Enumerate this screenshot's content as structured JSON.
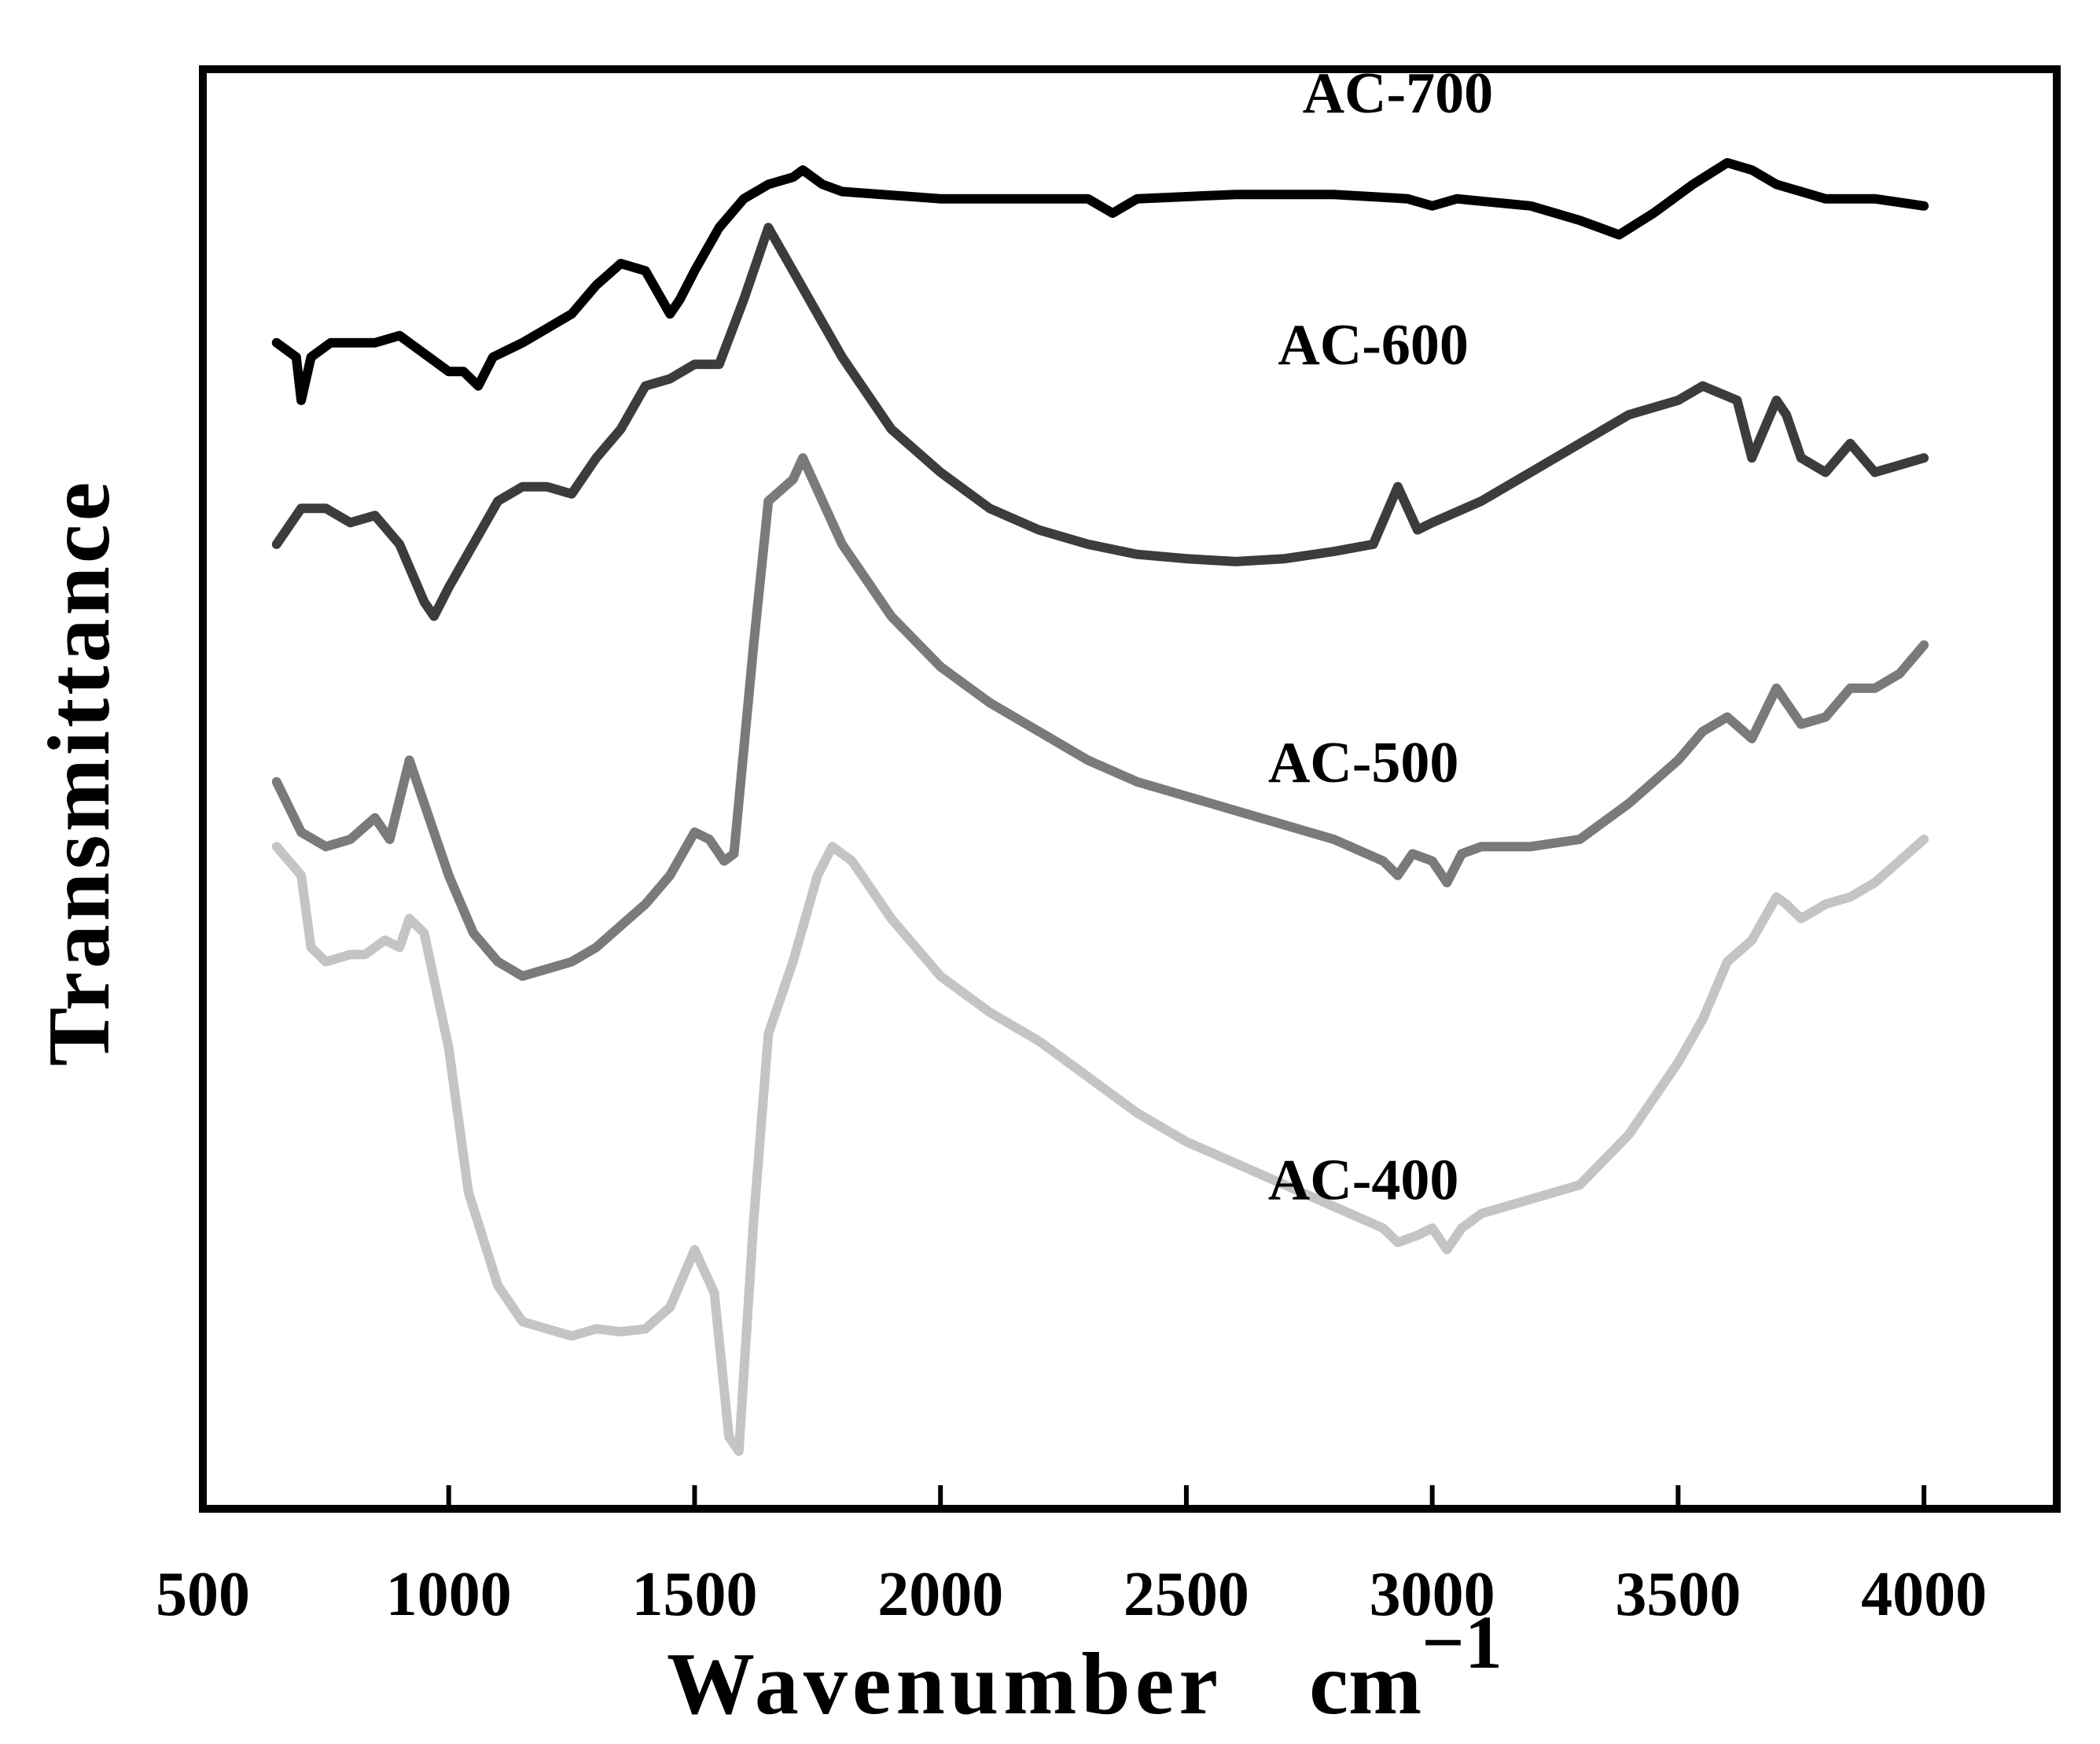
{
  "chart_data": {
    "type": "line",
    "title": "",
    "xlabel": "Wavenumber",
    "xlabel_unit": "cm",
    "xlabel_unit_exponent": "−1",
    "ylabel": "Transmittance",
    "xlim": [
      500,
      4270
    ],
    "ylim": [
      0,
      100
    ],
    "grid": false,
    "legend": "inline labels next to curves",
    "x_ticks": [
      {
        "value": 500,
        "label": "500"
      },
      {
        "value": 1000,
        "label": "1000"
      },
      {
        "value": 1500,
        "label": "1500"
      },
      {
        "value": 2000,
        "label": "2000"
      },
      {
        "value": 2500,
        "label": "2500"
      },
      {
        "value": 3000,
        "label": "3000"
      },
      {
        "value": 3500,
        "label": "3500"
      },
      {
        "value": 4000,
        "label": "4000"
      }
    ],
    "series": [
      {
        "name": "AC-700",
        "label": "AC-700",
        "color": "#000000",
        "label_pos": {
          "x": 2930,
          "y": 97
        },
        "points": [
          [
            650,
            81
          ],
          [
            690,
            80
          ],
          [
            700,
            77
          ],
          [
            720,
            80
          ],
          [
            760,
            81
          ],
          [
            850,
            81
          ],
          [
            900,
            81.5
          ],
          [
            960,
            80
          ],
          [
            1000,
            79
          ],
          [
            1030,
            79
          ],
          [
            1060,
            78
          ],
          [
            1090,
            80
          ],
          [
            1150,
            81
          ],
          [
            1200,
            82
          ],
          [
            1250,
            83
          ],
          [
            1300,
            85
          ],
          [
            1350,
            86.5
          ],
          [
            1400,
            86
          ],
          [
            1450,
            83
          ],
          [
            1470,
            84
          ],
          [
            1500,
            86
          ],
          [
            1550,
            89
          ],
          [
            1600,
            91
          ],
          [
            1650,
            92
          ],
          [
            1700,
            92.5
          ],
          [
            1720,
            93
          ],
          [
            1760,
            92
          ],
          [
            1800,
            91.5
          ],
          [
            2000,
            91
          ],
          [
            2200,
            91
          ],
          [
            2300,
            91
          ],
          [
            2350,
            90
          ],
          [
            2400,
            91
          ],
          [
            2600,
            91.3
          ],
          [
            2800,
            91.3
          ],
          [
            2950,
            91
          ],
          [
            3000,
            90.5
          ],
          [
            3050,
            91
          ],
          [
            3200,
            90.5
          ],
          [
            3300,
            89.5
          ],
          [
            3380,
            88.5
          ],
          [
            3450,
            90
          ],
          [
            3530,
            92
          ],
          [
            3600,
            93.5
          ],
          [
            3650,
            93
          ],
          [
            3700,
            92
          ],
          [
            3800,
            91
          ],
          [
            3900,
            91
          ],
          [
            4000,
            90.5
          ]
        ]
      },
      {
        "name": "AC-600",
        "label": "AC-600",
        "color": "#3c3c3c",
        "label_pos": {
          "x": 2880,
          "y": 79.5
        },
        "points": [
          [
            650,
            67
          ],
          [
            700,
            69.5
          ],
          [
            750,
            69.5
          ],
          [
            800,
            68.5
          ],
          [
            850,
            69
          ],
          [
            900,
            67
          ],
          [
            950,
            63
          ],
          [
            970,
            62
          ],
          [
            1000,
            64
          ],
          [
            1050,
            67
          ],
          [
            1100,
            70
          ],
          [
            1150,
            71
          ],
          [
            1200,
            71
          ],
          [
            1250,
            70.5
          ],
          [
            1300,
            73
          ],
          [
            1350,
            75
          ],
          [
            1400,
            78
          ],
          [
            1450,
            78.5
          ],
          [
            1500,
            79.5
          ],
          [
            1550,
            79.5
          ],
          [
            1600,
            84
          ],
          [
            1650,
            89
          ],
          [
            1700,
            86
          ],
          [
            1750,
            83
          ],
          [
            1800,
            80
          ],
          [
            1900,
            75
          ],
          [
            2000,
            72
          ],
          [
            2100,
            69.5
          ],
          [
            2200,
            68
          ],
          [
            2300,
            67
          ],
          [
            2400,
            66.3
          ],
          [
            2500,
            66
          ],
          [
            2600,
            65.8
          ],
          [
            2700,
            66
          ],
          [
            2800,
            66.5
          ],
          [
            2880,
            67
          ],
          [
            2930,
            71
          ],
          [
            2970,
            68
          ],
          [
            3000,
            68.5
          ],
          [
            3100,
            70
          ],
          [
            3200,
            72
          ],
          [
            3300,
            74
          ],
          [
            3400,
            76
          ],
          [
            3500,
            77
          ],
          [
            3550,
            78
          ],
          [
            3620,
            77
          ],
          [
            3650,
            73
          ],
          [
            3700,
            77
          ],
          [
            3720,
            76
          ],
          [
            3750,
            73
          ],
          [
            3800,
            72
          ],
          [
            3850,
            74
          ],
          [
            3900,
            72
          ],
          [
            3950,
            72.5
          ],
          [
            4000,
            73
          ]
        ]
      },
      {
        "name": "AC-500",
        "label": "AC-500",
        "color": "#7a7a7a",
        "label_pos": {
          "x": 2860,
          "y": 50.5
        },
        "points": [
          [
            650,
            50.5
          ],
          [
            700,
            47
          ],
          [
            750,
            46
          ],
          [
            800,
            46.5
          ],
          [
            850,
            48
          ],
          [
            880,
            46.5
          ],
          [
            920,
            52
          ],
          [
            950,
            49
          ],
          [
            1000,
            44
          ],
          [
            1050,
            40
          ],
          [
            1100,
            38
          ],
          [
            1150,
            37
          ],
          [
            1200,
            37.5
          ],
          [
            1250,
            38
          ],
          [
            1300,
            39
          ],
          [
            1350,
            40.5
          ],
          [
            1400,
            42
          ],
          [
            1450,
            44
          ],
          [
            1500,
            47
          ],
          [
            1530,
            46.5
          ],
          [
            1560,
            45
          ],
          [
            1580,
            45.5
          ],
          [
            1620,
            60
          ],
          [
            1650,
            70
          ],
          [
            1700,
            71.5
          ],
          [
            1720,
            73
          ],
          [
            1760,
            70
          ],
          [
            1800,
            67
          ],
          [
            1900,
            62
          ],
          [
            2000,
            58.5
          ],
          [
            2100,
            56
          ],
          [
            2200,
            54
          ],
          [
            2300,
            52
          ],
          [
            2400,
            50.5
          ],
          [
            2500,
            49.5
          ],
          [
            2600,
            48.5
          ],
          [
            2700,
            47.5
          ],
          [
            2800,
            46.5
          ],
          [
            2900,
            45
          ],
          [
            2930,
            44
          ],
          [
            2960,
            45.5
          ],
          [
            3000,
            45
          ],
          [
            3030,
            43.5
          ],
          [
            3060,
            45.5
          ],
          [
            3100,
            46
          ],
          [
            3200,
            46
          ],
          [
            3300,
            46.5
          ],
          [
            3400,
            49
          ],
          [
            3500,
            52
          ],
          [
            3550,
            54
          ],
          [
            3600,
            55
          ],
          [
            3650,
            53.5
          ],
          [
            3700,
            57
          ],
          [
            3720,
            56
          ],
          [
            3750,
            54.5
          ],
          [
            3800,
            55
          ],
          [
            3850,
            57
          ],
          [
            3900,
            57
          ],
          [
            3950,
            58
          ],
          [
            4000,
            60
          ]
        ]
      },
      {
        "name": "AC-400",
        "label": "AC-400",
        "color": "#c4c4c4",
        "label_pos": {
          "x": 2860,
          "y": 21.5
        },
        "points": [
          [
            650,
            46
          ],
          [
            700,
            44
          ],
          [
            720,
            39
          ],
          [
            750,
            38
          ],
          [
            800,
            38.5
          ],
          [
            830,
            38.5
          ],
          [
            870,
            39.5
          ],
          [
            900,
            39
          ],
          [
            920,
            41
          ],
          [
            950,
            40
          ],
          [
            1000,
            32
          ],
          [
            1040,
            22
          ],
          [
            1100,
            15.5
          ],
          [
            1150,
            13
          ],
          [
            1200,
            12.5
          ],
          [
            1250,
            12
          ],
          [
            1300,
            12.5
          ],
          [
            1350,
            12.3
          ],
          [
            1400,
            12.5
          ],
          [
            1450,
            14
          ],
          [
            1500,
            18
          ],
          [
            1540,
            15
          ],
          [
            1570,
            5
          ],
          [
            1590,
            4
          ],
          [
            1620,
            20
          ],
          [
            1650,
            33
          ],
          [
            1700,
            38
          ],
          [
            1750,
            44
          ],
          [
            1780,
            46
          ],
          [
            1820,
            45
          ],
          [
            1900,
            41
          ],
          [
            2000,
            37
          ],
          [
            2100,
            34.5
          ],
          [
            2200,
            32.5
          ],
          [
            2300,
            30
          ],
          [
            2400,
            27.5
          ],
          [
            2500,
            25.5
          ],
          [
            2600,
            24
          ],
          [
            2700,
            22.5
          ],
          [
            2800,
            21
          ],
          [
            2900,
            19.5
          ],
          [
            2930,
            18.5
          ],
          [
            2970,
            19
          ],
          [
            3000,
            19.5
          ],
          [
            3030,
            18
          ],
          [
            3060,
            19.5
          ],
          [
            3100,
            20.5
          ],
          [
            3200,
            21.5
          ],
          [
            3300,
            22.5
          ],
          [
            3400,
            26
          ],
          [
            3500,
            31
          ],
          [
            3550,
            34
          ],
          [
            3600,
            38
          ],
          [
            3650,
            39.5
          ],
          [
            3700,
            42.5
          ],
          [
            3720,
            42
          ],
          [
            3750,
            41
          ],
          [
            3800,
            42
          ],
          [
            3850,
            42.5
          ],
          [
            3900,
            43.5
          ],
          [
            3950,
            45
          ],
          [
            4000,
            46.5
          ]
        ]
      }
    ]
  }
}
